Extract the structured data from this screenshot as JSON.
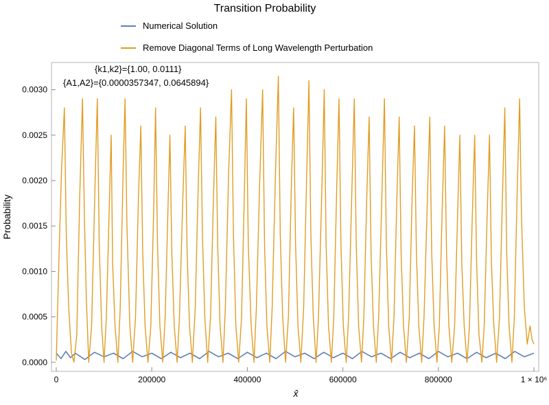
{
  "chart_data": {
    "type": "line",
    "title": "Transition Probability",
    "xlabel": "x̂",
    "ylabel": "Probability",
    "xlim": [
      -10000,
      1010000
    ],
    "ylim": [
      -0.0001,
      0.0033
    ],
    "x_ticks": [
      {
        "value": 0,
        "label": "0"
      },
      {
        "value": 200000,
        "label": "200000"
      },
      {
        "value": 400000,
        "label": "400000"
      },
      {
        "value": 600000,
        "label": "600000"
      },
      {
        "value": 800000,
        "label": "800000"
      },
      {
        "value": 1000000,
        "label": "1 × 10⁶"
      }
    ],
    "y_ticks": [
      {
        "value": 0,
        "label": "0.0000"
      },
      {
        "value": 0.0005,
        "label": "0.0005"
      },
      {
        "value": 0.001,
        "label": "0.0010"
      },
      {
        "value": 0.0015,
        "label": "0.0015"
      },
      {
        "value": 0.002,
        "label": "0.0020"
      },
      {
        "value": 0.0025,
        "label": "0.0025"
      },
      {
        "value": 0.003,
        "label": "0.0030"
      }
    ],
    "legend_position": "top",
    "annotations": [
      "{k1,k2}={1.00, 0.0111}",
      "{A1,A2}={0.0000357347, 0.0645894}"
    ],
    "series": [
      {
        "name": "Numerical Solution",
        "color": "#5E81B5",
        "points": [
          [
            0,
            0.0001
          ],
          [
            10000,
            4e-05
          ],
          [
            20000,
            0.00012
          ],
          [
            30000,
            5e-05
          ],
          [
            40000,
            0.0001
          ],
          [
            60000,
            3e-05
          ],
          [
            80000,
            0.00011
          ],
          [
            100000,
            6e-05
          ],
          [
            120000,
            0.0001
          ],
          [
            140000,
            4e-05
          ],
          [
            160000,
            0.00012
          ],
          [
            180000,
            6e-05
          ],
          [
            200000,
            0.0001
          ],
          [
            220000,
            4e-05
          ],
          [
            240000,
            0.00011
          ],
          [
            260000,
            5e-05
          ],
          [
            280000,
            0.0001
          ],
          [
            300000,
            4e-05
          ],
          [
            320000,
            0.00012
          ],
          [
            340000,
            6e-05
          ],
          [
            360000,
            0.0001
          ],
          [
            380000,
            4e-05
          ],
          [
            400000,
            0.00011
          ],
          [
            420000,
            5e-05
          ],
          [
            440000,
            0.0001
          ],
          [
            460000,
            4e-05
          ],
          [
            480000,
            0.00012
          ],
          [
            500000,
            6e-05
          ],
          [
            520000,
            0.0001
          ],
          [
            540000,
            4e-05
          ],
          [
            560000,
            0.00011
          ],
          [
            580000,
            5e-05
          ],
          [
            600000,
            0.0001
          ],
          [
            620000,
            4e-05
          ],
          [
            640000,
            0.00012
          ],
          [
            660000,
            6e-05
          ],
          [
            680000,
            0.0001
          ],
          [
            700000,
            4e-05
          ],
          [
            720000,
            0.00011
          ],
          [
            740000,
            5e-05
          ],
          [
            760000,
            0.0001
          ],
          [
            780000,
            4e-05
          ],
          [
            800000,
            0.00012
          ],
          [
            820000,
            6e-05
          ],
          [
            840000,
            0.0001
          ],
          [
            860000,
            4e-05
          ],
          [
            880000,
            0.00011
          ],
          [
            900000,
            5e-05
          ],
          [
            920000,
            0.0001
          ],
          [
            940000,
            4e-05
          ],
          [
            960000,
            0.00012
          ],
          [
            980000,
            6e-05
          ],
          [
            1000000,
            0.0001
          ]
        ]
      },
      {
        "name": "Remove Diagonal Terms of Long Wavelength Perturbation",
        "color": "#E19C24",
        "points": [
          [
            0,
            2e-05
          ],
          [
            6000,
            0.0012
          ],
          [
            11000,
            0.0021
          ],
          [
            17000,
            0.0028
          ],
          [
            21000,
            0.0014
          ],
          [
            26000,
            0.0006
          ],
          [
            32000,
            0.0001
          ],
          [
            37000,
            0.0
          ],
          [
            43000,
            0.0003
          ],
          [
            49000,
            0.0018
          ],
          [
            55000,
            0.0029
          ],
          [
            59000,
            0.0016
          ],
          [
            63000,
            0.0007
          ],
          [
            68000,
            0.0
          ],
          [
            74000,
            0.0004
          ],
          [
            81000,
            0.0019
          ],
          [
            86000,
            0.0029
          ],
          [
            90000,
            0.0013
          ],
          [
            95000,
            0.0004
          ],
          [
            100000,
            0.0
          ],
          [
            105000,
            0.0005
          ],
          [
            111000,
            0.0017
          ],
          [
            115000,
            0.0025
          ],
          [
            118000,
            0.0011
          ],
          [
            123000,
            0.0004
          ],
          [
            129000,
            0.0
          ],
          [
            134000,
            0.0006
          ],
          [
            140000,
            0.0021
          ],
          [
            144000,
            0.0029
          ],
          [
            148000,
            0.0015
          ],
          [
            154000,
            0.0004
          ],
          [
            160000,
            0.0
          ],
          [
            166000,
            0.0005
          ],
          [
            172000,
            0.0018
          ],
          [
            177000,
            0.0026
          ],
          [
            181000,
            0.0012
          ],
          [
            186000,
            0.0004
          ],
          [
            192000,
            0.0
          ],
          [
            198000,
            0.0004
          ],
          [
            204000,
            0.0017
          ],
          [
            208000,
            0.0028
          ],
          [
            212000,
            0.0013
          ],
          [
            217000,
            0.0004
          ],
          [
            223000,
            0.0
          ],
          [
            228000,
            0.0005
          ],
          [
            234000,
            0.0017
          ],
          [
            238000,
            0.0025
          ],
          [
            242000,
            0.0012
          ],
          [
            247000,
            0.0004
          ],
          [
            253000,
            0.0
          ],
          [
            258000,
            0.0005
          ],
          [
            265000,
            0.0018
          ],
          [
            270000,
            0.0026
          ],
          [
            274000,
            0.0012
          ],
          [
            279000,
            0.0004
          ],
          [
            285000,
            0.0
          ],
          [
            291000,
            0.0006
          ],
          [
            297000,
            0.0019
          ],
          [
            302000,
            0.0028
          ],
          [
            306000,
            0.0014
          ],
          [
            311000,
            0.0005
          ],
          [
            317000,
            0.0
          ],
          [
            323000,
            0.0005
          ],
          [
            329000,
            0.0018
          ],
          [
            334000,
            0.0027
          ],
          [
            338000,
            0.0013
          ],
          [
            343000,
            0.0004
          ],
          [
            349000,
            0.0
          ],
          [
            354000,
            0.0006
          ],
          [
            361000,
            0.0021
          ],
          [
            367000,
            0.003
          ],
          [
            371000,
            0.0014
          ],
          [
            376000,
            0.0004
          ],
          [
            382000,
            0.0
          ],
          [
            388000,
            0.0005
          ],
          [
            394000,
            0.0019
          ],
          [
            398000,
            0.0029
          ],
          [
            402000,
            0.0013
          ],
          [
            408000,
            0.0004
          ],
          [
            414000,
            0.0
          ],
          [
            419000,
            0.0006
          ],
          [
            426000,
            0.002
          ],
          [
            432000,
            0.003
          ],
          [
            436000,
            0.0013
          ],
          [
            441000,
            0.0004
          ],
          [
            447000,
            0.0
          ],
          [
            452000,
            0.0006
          ],
          [
            459000,
            0.0021
          ],
          [
            465000,
            0.00315
          ],
          [
            469000,
            0.0014
          ],
          [
            474000,
            0.0005
          ],
          [
            480000,
            0.0
          ],
          [
            486000,
            0.0005
          ],
          [
            492000,
            0.0019
          ],
          [
            497000,
            0.0028
          ],
          [
            501000,
            0.0013
          ],
          [
            506000,
            0.0004
          ],
          [
            512000,
            0.0
          ],
          [
            518000,
            0.0006
          ],
          [
            524000,
            0.002
          ],
          [
            529000,
            0.0031
          ],
          [
            533000,
            0.0014
          ],
          [
            538000,
            0.0005
          ],
          [
            544000,
            0.0
          ],
          [
            549000,
            0.0005
          ],
          [
            556000,
            0.0019
          ],
          [
            561000,
            0.003
          ],
          [
            565000,
            0.0013
          ],
          [
            570000,
            0.0004
          ],
          [
            576000,
            0.0
          ],
          [
            581000,
            0.0005
          ],
          [
            587000,
            0.0019
          ],
          [
            592000,
            0.0029
          ],
          [
            596000,
            0.0013
          ],
          [
            601000,
            0.0004
          ],
          [
            607000,
            0.0
          ],
          [
            612000,
            0.0005
          ],
          [
            619000,
            0.0019
          ],
          [
            624000,
            0.0029
          ],
          [
            628000,
            0.0013
          ],
          [
            633000,
            0.0004
          ],
          [
            639000,
            0.0
          ],
          [
            644000,
            0.0005
          ],
          [
            650000,
            0.0018
          ],
          [
            655000,
            0.0027
          ],
          [
            659000,
            0.0012
          ],
          [
            664000,
            0.0004
          ],
          [
            670000,
            0.0
          ],
          [
            675000,
            0.0005
          ],
          [
            682000,
            0.0019
          ],
          [
            687000,
            0.0029
          ],
          [
            691000,
            0.0013
          ],
          [
            696000,
            0.0004
          ],
          [
            702000,
            0.0
          ],
          [
            707000,
            0.0005
          ],
          [
            713000,
            0.0018
          ],
          [
            718000,
            0.0027
          ],
          [
            722000,
            0.0012
          ],
          [
            727000,
            0.0004
          ],
          [
            733000,
            0.0
          ],
          [
            739000,
            0.0005
          ],
          [
            745000,
            0.0018
          ],
          [
            750000,
            0.0026
          ],
          [
            754000,
            0.0012
          ],
          [
            759000,
            0.0004
          ],
          [
            765000,
            0.0
          ],
          [
            770000,
            0.0005
          ],
          [
            777000,
            0.0018
          ],
          [
            782000,
            0.0027
          ],
          [
            786000,
            0.0012
          ],
          [
            791000,
            0.0004
          ],
          [
            797000,
            0.0
          ],
          [
            802000,
            0.0004
          ],
          [
            808000,
            0.0017
          ],
          [
            813000,
            0.0026
          ],
          [
            817000,
            0.0012
          ],
          [
            822000,
            0.0004
          ],
          [
            828000,
            0.0
          ],
          [
            834000,
            0.0004
          ],
          [
            840000,
            0.0016
          ],
          [
            845000,
            0.0025
          ],
          [
            849000,
            0.0011
          ],
          [
            854000,
            0.0004
          ],
          [
            860000,
            0.0
          ],
          [
            865000,
            0.0004
          ],
          [
            871000,
            0.0016
          ],
          [
            876000,
            0.0025
          ],
          [
            880000,
            0.0011
          ],
          [
            885000,
            0.0003
          ],
          [
            891000,
            0.0
          ],
          [
            896000,
            0.0004
          ],
          [
            902000,
            0.0016
          ],
          [
            907000,
            0.0025
          ],
          [
            911000,
            0.0011
          ],
          [
            916000,
            0.0004
          ],
          [
            922000,
            0.0
          ],
          [
            928000,
            0.0005
          ],
          [
            934000,
            0.0018
          ],
          [
            939000,
            0.0028
          ],
          [
            943000,
            0.0012
          ],
          [
            948000,
            0.0004
          ],
          [
            954000,
            0.0
          ],
          [
            959000,
            0.0005
          ],
          [
            965000,
            0.0019
          ],
          [
            970000,
            0.0029
          ],
          [
            974000,
            0.0016
          ],
          [
            980000,
            0.0006
          ],
          [
            986000,
            0.0002
          ],
          [
            992000,
            0.0004
          ],
          [
            996000,
            0.00025
          ],
          [
            1000000,
            0.0002
          ]
        ]
      }
    ]
  }
}
